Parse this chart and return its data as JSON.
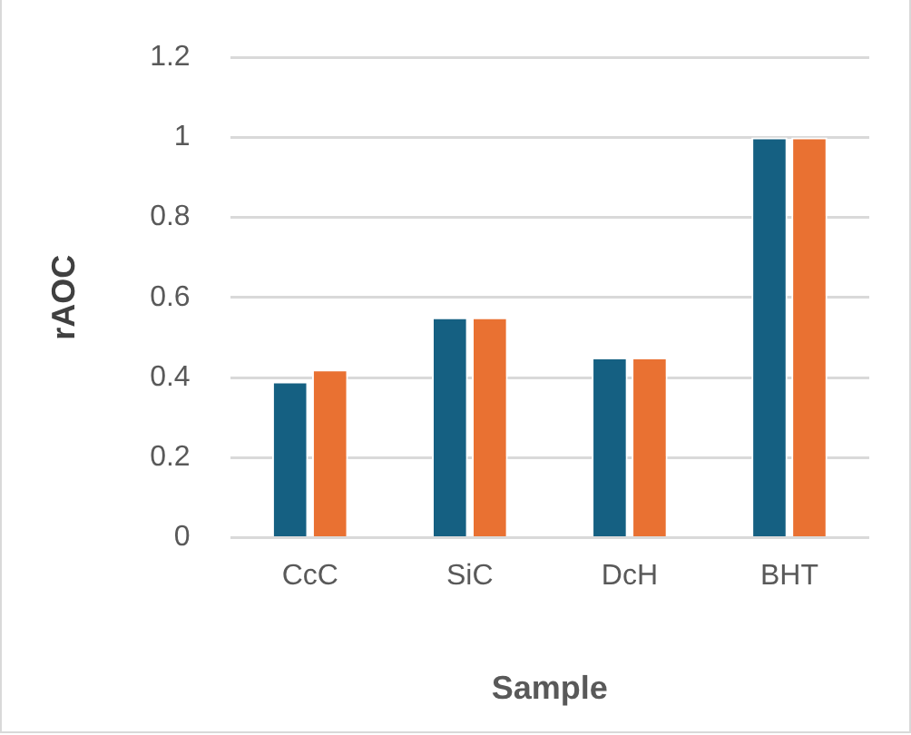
{
  "chart_data": {
    "type": "bar",
    "xlabel": "Sample",
    "ylabel": "rAOC",
    "categories": [
      "CcC",
      "SiC",
      "DcH",
      "BHT"
    ],
    "series": [
      {
        "color": "#156082",
        "values": [
          0.39,
          0.55,
          0.45,
          1
        ]
      },
      {
        "color": "#e97132",
        "values": [
          0.42,
          0.55,
          0.45,
          1
        ]
      }
    ],
    "ylim": [
      0,
      1.2
    ],
    "yticks": [
      0,
      0.2,
      0.4,
      0.6,
      0.8,
      1,
      1.2
    ],
    "grid": "y",
    "legend": false
  }
}
